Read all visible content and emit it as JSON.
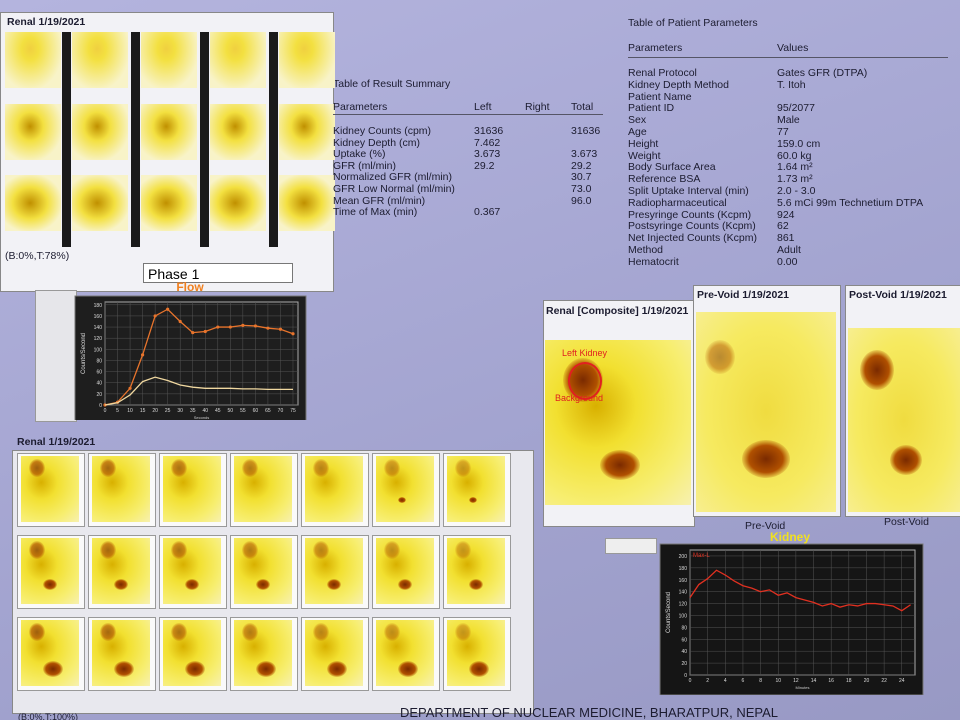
{
  "top_panel": {
    "title": "Renal 1/19/2021",
    "status": "(B:0%,T:78%)",
    "phase": "Phase 1"
  },
  "result_summary": {
    "title": "Table of Result Summary",
    "columns": [
      "Parameters",
      "Left",
      "Right",
      "Total"
    ],
    "rows": [
      {
        "label": "Kidney Counts (cpm)",
        "left": "31636",
        "total": "31636"
      },
      {
        "label": "Kidney Depth (cm)",
        "left": "7.462"
      },
      {
        "label": "Uptake (%)",
        "left": "3.673",
        "total": "3.673"
      },
      {
        "label": "GFR (ml/min)",
        "left": "29.2",
        "total": "29.2"
      },
      {
        "label": "Normalized GFR (ml/min)",
        "total": "30.7"
      },
      {
        "label": "GFR Low Normal (ml/min)",
        "total": "73.0"
      },
      {
        "label": "Mean GFR (ml/min)",
        "total": "96.0"
      },
      {
        "label": "Time of Max (min)",
        "left": "0.367"
      }
    ]
  },
  "patient_parameters": {
    "title": "Table of Patient Parameters",
    "columns": [
      "Parameters",
      "Values"
    ],
    "rows": [
      {
        "label": "Renal Protocol",
        "value": "Gates GFR (DTPA)"
      },
      {
        "label": "Kidney Depth Method",
        "value": "T. Itoh"
      },
      {
        "label": "Patient Name"
      },
      {
        "label": "Patient ID",
        "value": "95/2077"
      },
      {
        "label": "Sex",
        "value": "Male"
      },
      {
        "label": "Age",
        "value": "77"
      },
      {
        "label": "Height",
        "value": "159.0 cm"
      },
      {
        "label": "Weight",
        "value": "60.0 kg"
      },
      {
        "label": "Body Surface Area",
        "value": "1.64 m²"
      },
      {
        "label": "Reference BSA",
        "value": "1.73 m²"
      },
      {
        "label": "Split Uptake Interval (min)",
        "value": "2.0 - 3.0"
      },
      {
        "label": "Radiopharmaceutical",
        "value": "5.6 mCi 99m Technetium DTPA"
      },
      {
        "label": "Presyringe Counts (Kcpm)",
        "value": "924"
      },
      {
        "label": "Postsyringe Counts (Kcpm)",
        "value": "62"
      },
      {
        "label": "Net Injected Counts (Kcpm)",
        "value": "861"
      },
      {
        "label": "Method",
        "value": "Adult"
      },
      {
        "label": "Hematocrit",
        "value": "0.00"
      }
    ]
  },
  "composite": {
    "title": "Renal [Composite] 1/19/2021",
    "roi_kidney": "Left Kidney",
    "roi_background": "Background"
  },
  "pre_void": {
    "title": "Pre-Void 1/19/2021",
    "caption": "Pre-Void"
  },
  "post_void": {
    "title": "Post-Void 1/19/2021",
    "caption": "Post-Void"
  },
  "bottom_panel": {
    "title": "Renal 1/19/2021",
    "status": "(B:0%,T:100%)"
  },
  "footer": "DEPARTMENT OF NUCLEAR MEDICINE, BHARATPUR, NEPAL",
  "chart_data": [
    {
      "type": "line",
      "title": "Flow",
      "xlabel": "Seconds",
      "ylabel": "Counts/Second",
      "x": [
        0,
        5,
        10,
        15,
        20,
        25,
        30,
        35,
        40,
        45,
        50,
        55,
        60,
        65,
        70,
        75
      ],
      "xlim": [
        0,
        77
      ],
      "ylim": [
        0,
        185
      ],
      "xticks": [
        0,
        5,
        10,
        15,
        20,
        25,
        30,
        35,
        40,
        45,
        50,
        55,
        60,
        65,
        70,
        75
      ],
      "yticks": [
        0,
        20,
        40,
        60,
        80,
        100,
        120,
        140,
        160,
        180
      ],
      "series": [
        {
          "color": "#e8742c",
          "values": [
            0,
            5,
            30,
            90,
            160,
            172,
            150,
            130,
            132,
            140,
            140,
            143,
            142,
            138,
            136,
            128
          ]
        },
        {
          "color": "#f0d8a0",
          "values": [
            0,
            4,
            18,
            42,
            50,
            44,
            36,
            32,
            30,
            30,
            30,
            29,
            29,
            28,
            28,
            28
          ]
        }
      ]
    },
    {
      "type": "line",
      "title": "Kidney",
      "xlabel": "Minutes",
      "ylabel": "Counts/Second",
      "x": [
        0,
        1,
        2,
        3,
        4,
        5,
        6,
        7,
        8,
        9,
        10,
        11,
        12,
        13,
        14,
        15,
        16,
        17,
        18,
        19,
        20,
        21,
        22,
        23,
        24,
        25
      ],
      "xlim": [
        0,
        25.5
      ],
      "ylim": [
        0,
        210
      ],
      "xticks": [
        0,
        2,
        4,
        6,
        8,
        10,
        12,
        14,
        16,
        18,
        20,
        22,
        24
      ],
      "yticks": [
        0,
        20,
        40,
        60,
        80,
        100,
        120,
        140,
        160,
        180,
        200
      ],
      "series": [
        {
          "name": "Max-L",
          "color": "#e03020",
          "values": [
            130,
            152,
            162,
            176,
            168,
            158,
            150,
            146,
            140,
            143,
            134,
            138,
            130,
            126,
            122,
            116,
            120,
            114,
            118,
            116,
            120,
            120,
            118,
            116,
            108,
            118
          ]
        }
      ]
    }
  ]
}
